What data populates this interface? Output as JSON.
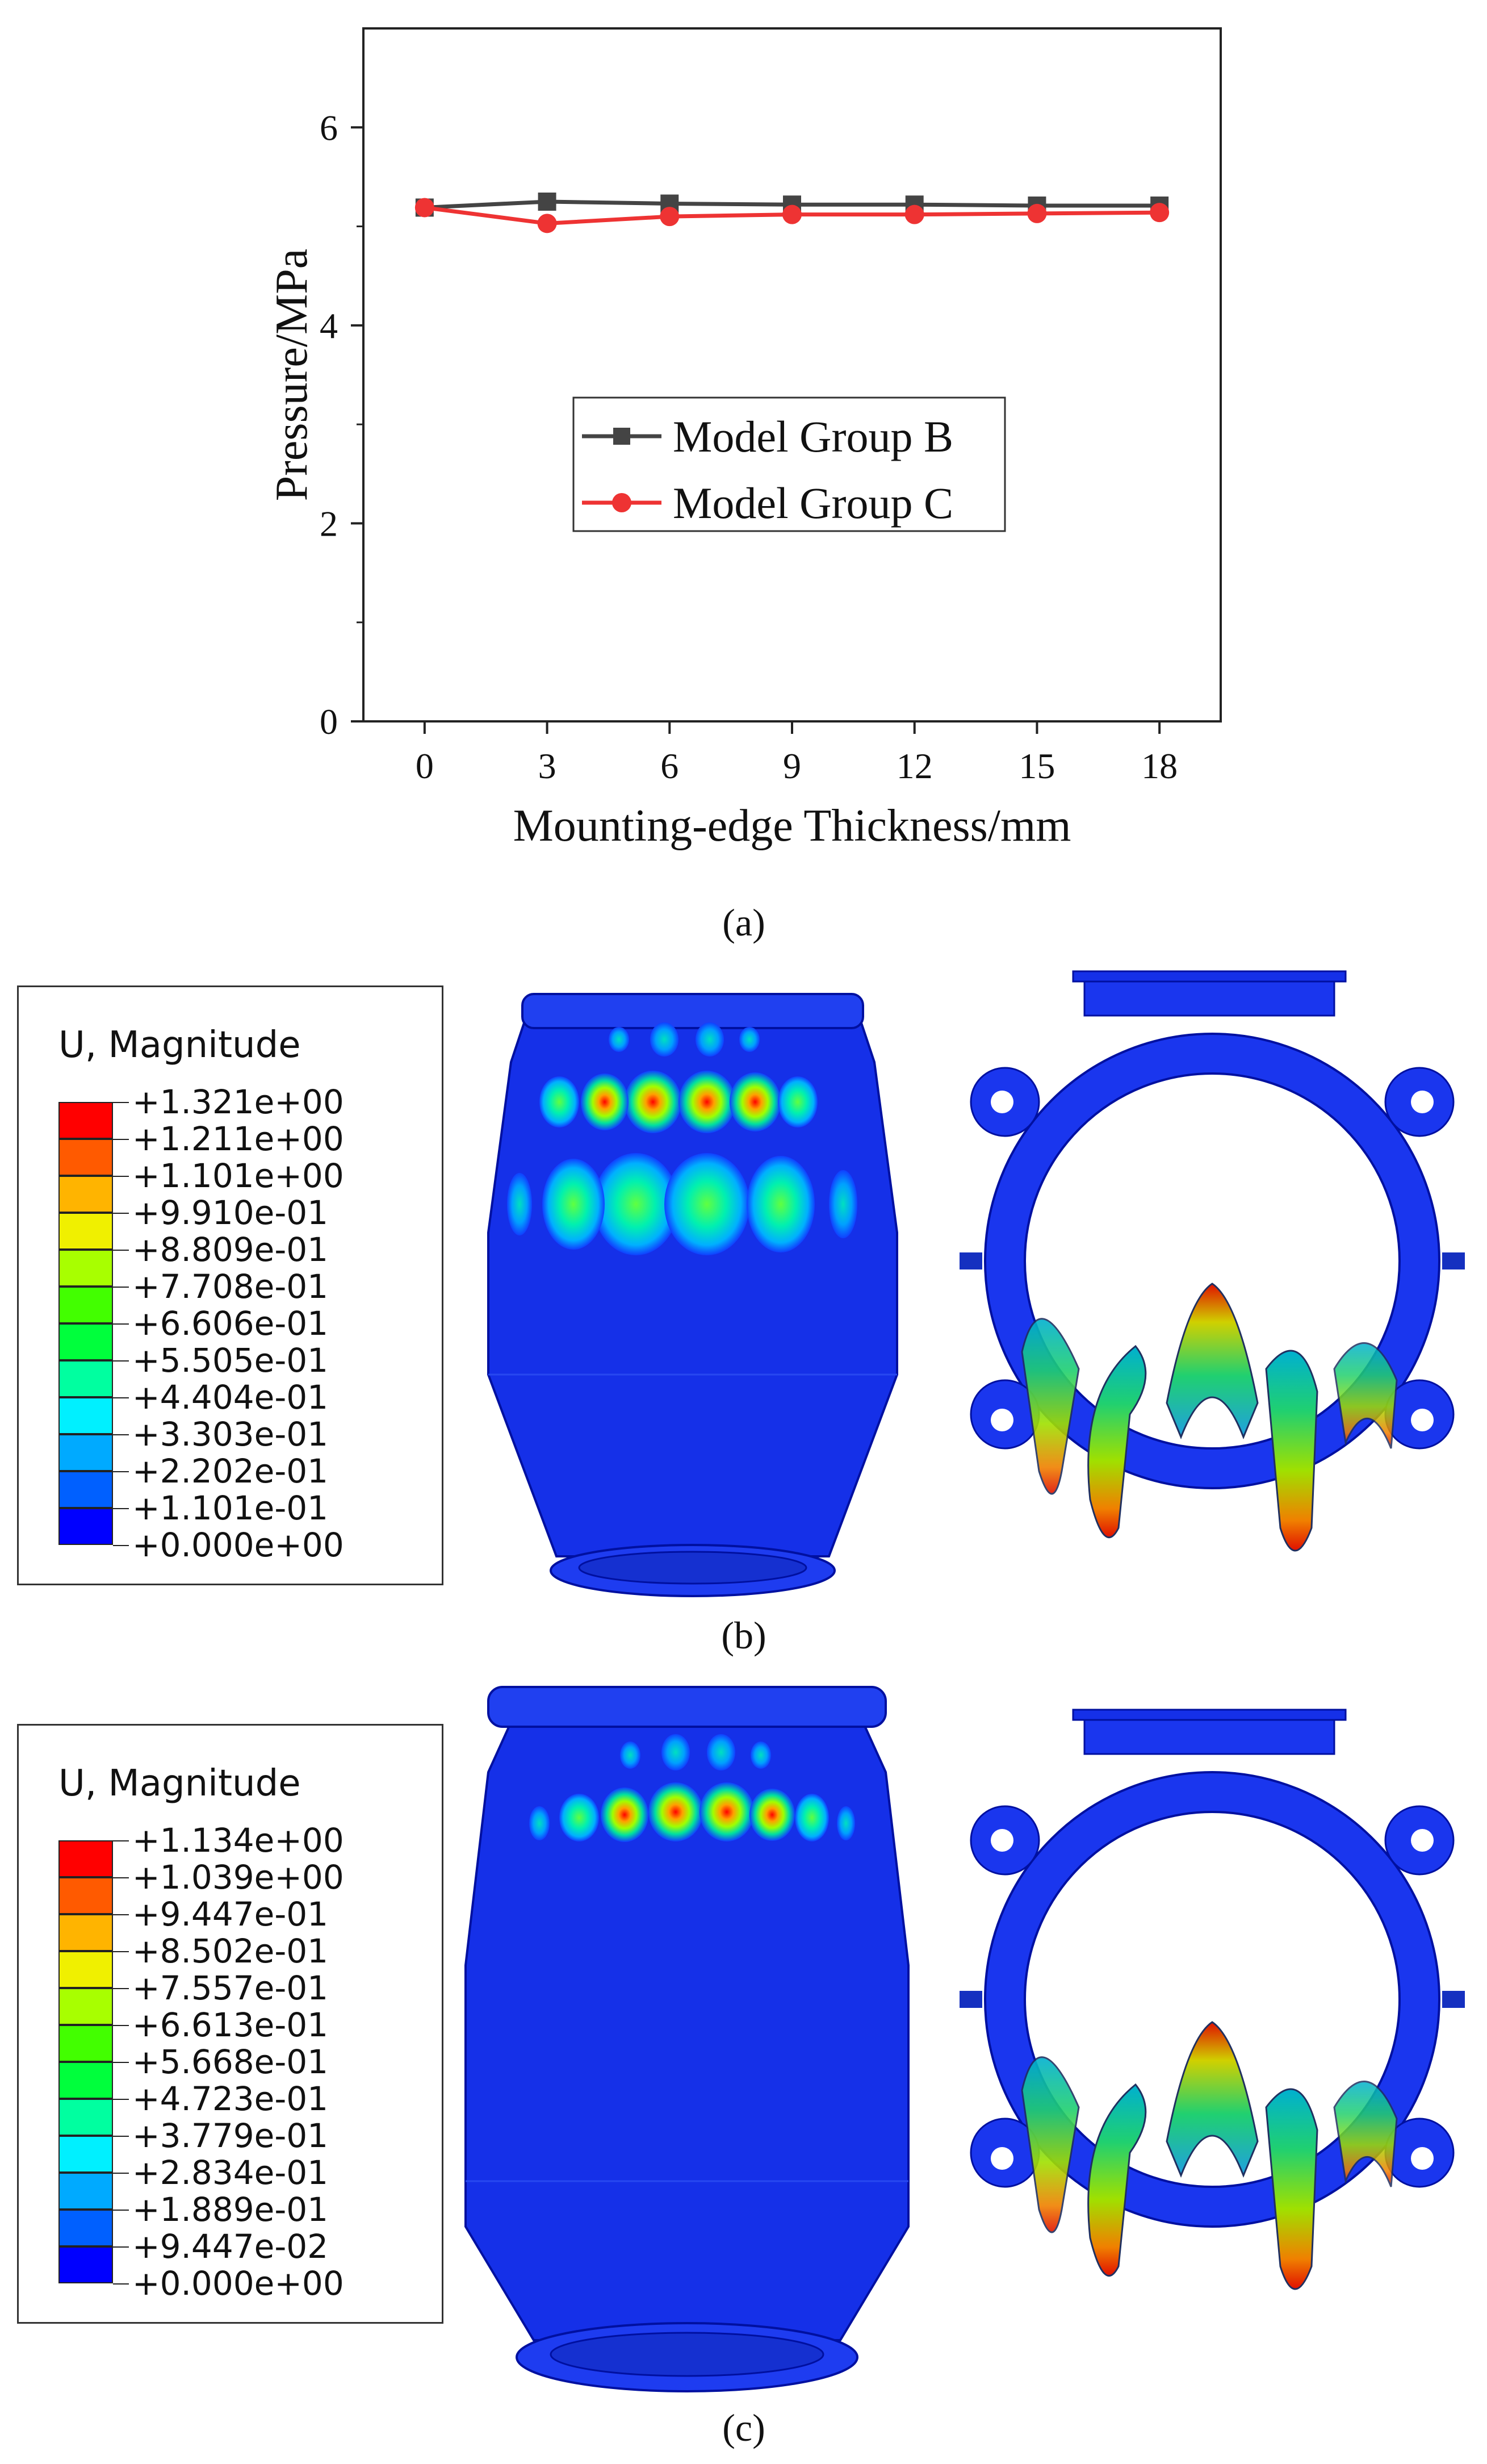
{
  "chart_data": {
    "type": "line",
    "xlabel": "Mounting-edge Thickness/mm",
    "ylabel": "Pressure/MPa",
    "xlim": [
      -1.5,
      19.5
    ],
    "ylim": [
      0,
      7
    ],
    "x_ticks": [
      "0",
      "3",
      "6",
      "9",
      "12",
      "15",
      "18"
    ],
    "y_ticks": [
      "0",
      "2",
      "4",
      "6"
    ],
    "x": [
      0,
      3,
      6,
      9,
      12,
      15,
      18
    ],
    "series": [
      {
        "name": "Model Group B",
        "values": [
          5.19,
          5.25,
          5.23,
          5.22,
          5.22,
          5.21,
          5.21
        ],
        "color": "#444444",
        "marker": "square"
      },
      {
        "name": "Model Group C",
        "values": [
          5.19,
          5.03,
          5.1,
          5.12,
          5.12,
          5.13,
          5.14
        ],
        "color": "#ee3333",
        "marker": "circle"
      }
    ],
    "legend": "center"
  },
  "captions": {
    "a": "(a)",
    "b": "(b)",
    "c": "(c)"
  },
  "panel_b": {
    "legend_title": "U, Magnitude",
    "labels": [
      "+1.321e+00",
      "+1.211e+00",
      "+1.101e+00",
      "+9.910e-01",
      "+8.809e-01",
      "+7.708e-01",
      "+6.606e-01",
      "+5.505e-01",
      "+4.404e-01",
      "+3.303e-01",
      "+2.202e-01",
      "+1.101e-01",
      "+0.000e+00"
    ]
  },
  "panel_c": {
    "legend_title": "U, Magnitude",
    "labels": [
      "+1.134e+00",
      "+1.039e+00",
      "+9.447e-01",
      "+8.502e-01",
      "+7.557e-01",
      "+6.613e-01",
      "+5.668e-01",
      "+4.723e-01",
      "+3.779e-01",
      "+2.834e-01",
      "+1.889e-01",
      "+9.447e-02",
      "+0.000e+00"
    ]
  },
  "colors": [
    "#ff0000",
    "#ff5a00",
    "#ffb400",
    "#f0f000",
    "#a8ff00",
    "#42ff00",
    "#00ff3c",
    "#00ffa0",
    "#00f0ff",
    "#00aaff",
    "#0060ff",
    "#0000ff"
  ]
}
